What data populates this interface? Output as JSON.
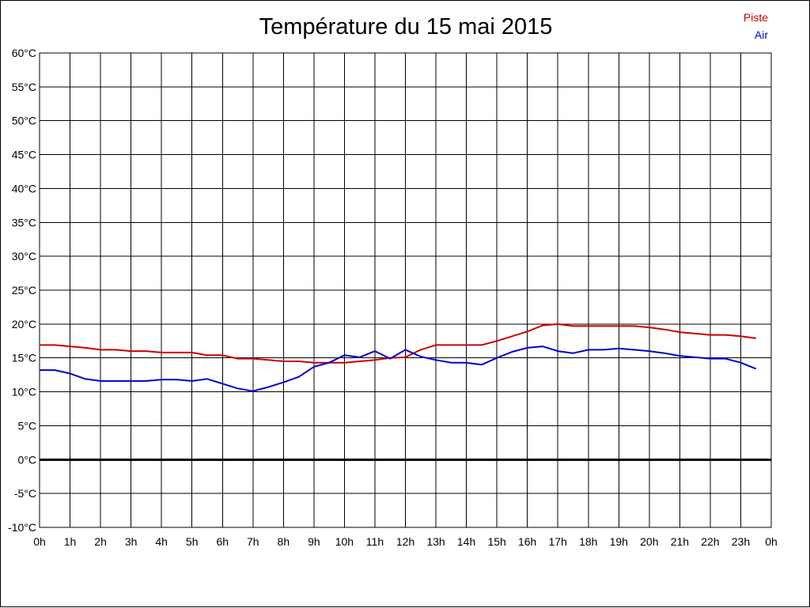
{
  "chart_data": {
    "type": "line",
    "title": "Température du 15 mai 2015",
    "xlabel": "",
    "ylabel": "",
    "x_ticks": [
      "0h",
      "1h",
      "2h",
      "3h",
      "4h",
      "5h",
      "6h",
      "7h",
      "8h",
      "9h",
      "10h",
      "11h",
      "12h",
      "13h",
      "14h",
      "15h",
      "16h",
      "17h",
      "18h",
      "19h",
      "20h",
      "21h",
      "22h",
      "23h",
      "0h"
    ],
    "y_ticks": [
      "-10°C",
      "-5°C",
      "0°C",
      "5°C",
      "10°C",
      "15°C",
      "20°C",
      "25°C",
      "30°C",
      "35°C",
      "40°C",
      "45°C",
      "50°C",
      "55°C",
      "60°C"
    ],
    "ylim": [
      -10,
      60
    ],
    "xlim": [
      0,
      24
    ],
    "grid": true,
    "zero_line": true,
    "legend_position": "top-right",
    "series": [
      {
        "name": "Piste",
        "color": "#cc0000",
        "x": [
          0,
          0.5,
          1,
          1.5,
          2,
          2.5,
          3,
          3.5,
          4,
          4.5,
          5,
          5.5,
          6,
          6.5,
          7,
          7.5,
          8,
          8.5,
          9,
          9.5,
          10,
          10.5,
          11,
          11.5,
          12,
          12.5,
          13,
          13.5,
          14,
          14.5,
          15,
          15.5,
          16,
          16.5,
          17,
          17.5,
          18,
          18.5,
          19,
          19.5,
          20,
          20.5,
          21,
          21.5,
          22,
          22.5,
          23,
          23.5
        ],
        "y": [
          16.9,
          16.9,
          16.7,
          16.5,
          16.2,
          16.2,
          16.0,
          16.0,
          15.8,
          15.8,
          15.8,
          15.4,
          15.4,
          14.9,
          14.9,
          14.7,
          14.5,
          14.5,
          14.3,
          14.3,
          14.3,
          14.5,
          14.7,
          15.0,
          15.1,
          16.2,
          16.9,
          16.9,
          16.9,
          16.9,
          17.5,
          18.2,
          18.9,
          19.8,
          20.0,
          19.7,
          19.7,
          19.7,
          19.7,
          19.7,
          19.5,
          19.2,
          18.8,
          18.6,
          18.4,
          18.4,
          18.2,
          17.9
        ]
      },
      {
        "name": "Air",
        "color": "#0000cc",
        "x": [
          0,
          0.5,
          1,
          1.5,
          2,
          2.5,
          3,
          3.5,
          4,
          4.5,
          5,
          5.5,
          6,
          6.5,
          7,
          7.5,
          8,
          8.5,
          9,
          9.5,
          10,
          10.5,
          11,
          11.5,
          12,
          12.5,
          13,
          13.5,
          14,
          14.5,
          15,
          15.5,
          16,
          16.5,
          17,
          17.5,
          18,
          18.5,
          19,
          19.5,
          20,
          20.5,
          21,
          21.5,
          22,
          22.5,
          23,
          23.5
        ],
        "y": [
          13.2,
          13.2,
          12.7,
          11.9,
          11.6,
          11.6,
          11.6,
          11.6,
          11.8,
          11.8,
          11.6,
          11.9,
          11.2,
          10.5,
          10.1,
          10.7,
          11.4,
          12.2,
          13.7,
          14.3,
          15.4,
          15.1,
          16.0,
          14.9,
          16.2,
          15.2,
          14.7,
          14.3,
          14.3,
          14.0,
          15.0,
          15.9,
          16.5,
          16.7,
          16.0,
          15.7,
          16.2,
          16.2,
          16.4,
          16.2,
          16.0,
          15.7,
          15.3,
          15.1,
          14.9,
          14.9,
          14.3,
          13.4
        ]
      }
    ]
  }
}
